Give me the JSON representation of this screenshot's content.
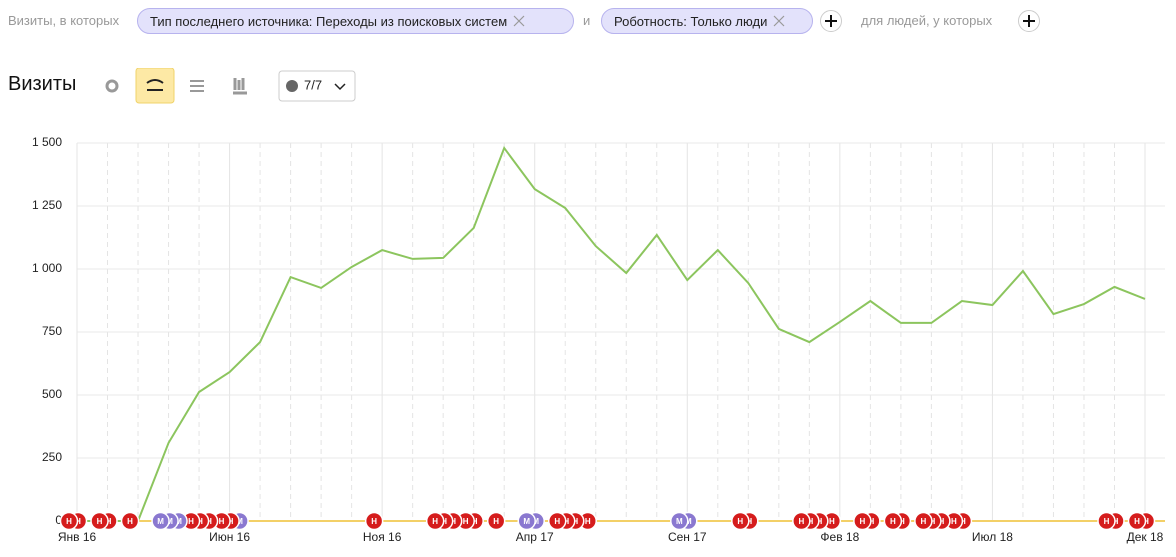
{
  "header": {
    "filter_prefix": "Визиты, в которых",
    "filters": [
      "Тип последнего источника: Переходы из поисковых систем",
      "Роботность: Только люди"
    ],
    "joiner": "и",
    "people_prefix": "для людей, у которых",
    "title": "Визиты",
    "notes_toggle": "7/7"
  },
  "chart_data": {
    "type": "line",
    "color": "#8cc55e",
    "grid": true,
    "categories": [
      "Янв 16",
      null,
      null,
      null,
      null,
      "Июн 16",
      null,
      null,
      null,
      null,
      "Ноя 16",
      null,
      null,
      null,
      null,
      "Апр 17",
      null,
      null,
      null,
      null,
      "Сен 17",
      null,
      null,
      null,
      null,
      "Фев 18",
      null,
      null,
      null,
      null,
      "Июл 18",
      null,
      null,
      null,
      null,
      "Дек 18"
    ],
    "values": [
      0,
      0,
      0,
      310,
      512,
      591,
      710,
      968,
      925,
      1008,
      1075,
      1040,
      1044,
      1163,
      1480,
      1317,
      1242,
      1091,
      984,
      1135,
      956,
      1075,
      944,
      762,
      710,
      790,
      873,
      786,
      786,
      873,
      857,
      992,
      821,
      861,
      929,
      881
    ],
    "ylim": [
      0,
      1500
    ],
    "yticks": [
      0,
      250,
      500,
      750,
      {
        "value": 1000,
        "label": "1 000"
      },
      {
        "value": 1250,
        "label": "1 250"
      },
      {
        "value": 1500,
        "label": "1 500"
      }
    ],
    "annotations": [
      {
        "x": 0,
        "label": "Н"
      },
      {
        "x": 0,
        "label": "Н"
      },
      {
        "x": 1,
        "label": "Н"
      },
      {
        "x": 1,
        "label": "Н"
      },
      {
        "x": 2,
        "label": "Н"
      },
      {
        "x": 3,
        "label": "М"
      },
      {
        "x": 3,
        "label": "М"
      },
      {
        "x": 3,
        "label": "М"
      },
      {
        "x": 4,
        "label": "Н"
      },
      {
        "x": 4,
        "label": "Н"
      },
      {
        "x": 4,
        "label": "Н"
      },
      {
        "x": 5,
        "label": "Н"
      },
      {
        "x": 5,
        "label": "Н"
      },
      {
        "x": 5,
        "label": "М"
      },
      {
        "x": 10,
        "label": "Н"
      },
      {
        "x": 12,
        "label": "Н"
      },
      {
        "x": 12,
        "label": "Н"
      },
      {
        "x": 12,
        "label": "Н"
      },
      {
        "x": 13,
        "label": "Н"
      },
      {
        "x": 13,
        "label": "Н"
      },
      {
        "x": 14,
        "label": "Н"
      },
      {
        "x": 15,
        "label": "М"
      },
      {
        "x": 15,
        "label": "М"
      },
      {
        "x": 16,
        "label": "Н"
      },
      {
        "x": 16,
        "label": "Н"
      },
      {
        "x": 16,
        "label": "Н"
      },
      {
        "x": 17,
        "label": "Н"
      },
      {
        "x": 20,
        "label": "М"
      },
      {
        "x": 20,
        "label": "М"
      },
      {
        "x": 22,
        "label": "Н"
      },
      {
        "x": 22,
        "label": "Н"
      },
      {
        "x": 24,
        "label": "Н"
      },
      {
        "x": 24,
        "label": "Н"
      },
      {
        "x": 24,
        "label": "Н"
      },
      {
        "x": 25,
        "label": "Н"
      },
      {
        "x": 26,
        "label": "Н"
      },
      {
        "x": 26,
        "label": "Н"
      },
      {
        "x": 27,
        "label": "Н"
      },
      {
        "x": 27,
        "label": "Н"
      },
      {
        "x": 28,
        "label": "Н"
      },
      {
        "x": 28,
        "label": "Н"
      },
      {
        "x": 28,
        "label": "Н"
      },
      {
        "x": 29,
        "label": "Н"
      },
      {
        "x": 29,
        "label": "Н"
      },
      {
        "x": 34,
        "label": "Н"
      },
      {
        "x": 34,
        "label": "Н"
      },
      {
        "x": 35,
        "label": "Н"
      },
      {
        "x": 35,
        "label": "Н"
      }
    ]
  }
}
